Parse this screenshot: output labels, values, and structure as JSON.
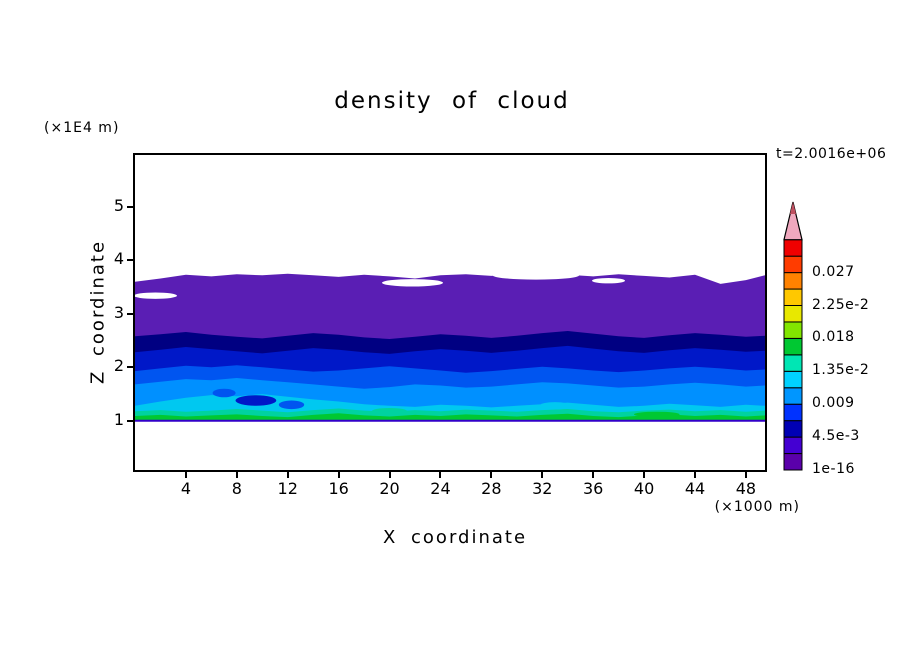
{
  "chart_data": {
    "type": "contour",
    "title": "density of cloud",
    "xlabel": "X coordinate",
    "ylabel": "Z coordinate",
    "x_unit_label": "(×1000 m)",
    "z_unit_label": "(×1E4 m)",
    "time_label": "t=2.0016e+06",
    "xlim": [
      0,
      49.5
    ],
    "zlim": [
      0.08,
      5.97
    ],
    "xticks": [
      4,
      8,
      12,
      16,
      20,
      24,
      28,
      32,
      36,
      40,
      44,
      48
    ],
    "zticks": [
      1,
      2,
      3,
      4,
      5
    ],
    "grid": false,
    "legend_position": "right-colorbar",
    "colorbar": {
      "labels_bottom_to_top": [
        "1e-16",
        "4.5e-3",
        "0.009",
        "1.35e-2",
        "0.018",
        "2.25e-2",
        "0.027"
      ],
      "boundary_values": [
        1e-16,
        0.00225,
        0.0045,
        0.00675,
        0.009,
        0.01125,
        0.0135,
        0.01575,
        0.018,
        0.02025,
        0.0225,
        0.02475,
        0.027,
        0.02925,
        0.0315
      ],
      "cell_colors_bottom_to_top": [
        "#5a00aa",
        "#4400d2",
        "#0000b4",
        "#0032ff",
        "#0096ff",
        "#00d2ff",
        "#00e6b4",
        "#00c832",
        "#82e600",
        "#e8e800",
        "#ffc800",
        "#ff8200",
        "#ff3c00",
        "#f00000"
      ],
      "overflow_arrow_color": "#f0a8be",
      "overflow_arrow_tip_color": "#c05060"
    },
    "field": {
      "description": "Stratified cloud density: highest values (green/cyan ~0.009-0.018) near cloud base z=1, decreasing upward through blue and navy to purple (1e-16 to 4.5e-3) with wavy cloud top near z=3.7",
      "x": [
        0,
        2,
        4,
        6,
        8,
        10,
        12,
        14,
        16,
        18,
        20,
        22,
        24,
        26,
        28,
        30,
        32,
        34,
        36,
        38,
        40,
        42,
        44,
        46,
        48,
        49.5
      ],
      "base_z": 1.0,
      "base_line_color": "#3200c8",
      "bands": [
        {
          "name": "purple",
          "approx_value": "1e-16 to 4.5e-3",
          "color": "#5a1eb4",
          "top": [
            3.6,
            3.66,
            3.73,
            3.7,
            3.74,
            3.72,
            3.75,
            3.72,
            3.69,
            3.73,
            3.7,
            3.66,
            3.72,
            3.74,
            3.71,
            3.74,
            3.76,
            3.73,
            3.7,
            3.74,
            3.71,
            3.68,
            3.73,
            3.56,
            3.63,
            3.72
          ]
        },
        {
          "name": "dark-navy",
          "approx_value": "4.5e-3",
          "color": "#000082",
          "top": [
            2.58,
            2.62,
            2.66,
            2.61,
            2.57,
            2.54,
            2.59,
            2.64,
            2.61,
            2.56,
            2.53,
            2.57,
            2.62,
            2.59,
            2.55,
            2.59,
            2.64,
            2.68,
            2.63,
            2.58,
            2.55,
            2.6,
            2.64,
            2.61,
            2.57,
            2.59
          ]
        },
        {
          "name": "navy",
          "approx_value": "6.75e-3",
          "color": "#0018c8",
          "top": [
            2.28,
            2.33,
            2.38,
            2.34,
            2.3,
            2.26,
            2.31,
            2.36,
            2.33,
            2.28,
            2.25,
            2.3,
            2.34,
            2.31,
            2.27,
            2.31,
            2.36,
            2.4,
            2.35,
            2.3,
            2.27,
            2.32,
            2.36,
            2.33,
            2.29,
            2.31
          ]
        },
        {
          "name": "blue",
          "approx_value": "0.009",
          "color": "#0055f0",
          "top": [
            1.93,
            1.98,
            2.03,
            2.0,
            2.04,
            2.0,
            1.96,
            1.92,
            1.94,
            1.98,
            2.02,
            1.98,
            1.94,
            1.9,
            1.93,
            1.97,
            2.01,
            1.98,
            1.94,
            1.91,
            1.94,
            1.98,
            2.01,
            1.98,
            1.94,
            1.96
          ]
        },
        {
          "name": "sky-blue",
          "approx_value": "1.125e-2",
          "color": "#0090ff",
          "top": [
            1.68,
            1.73,
            1.78,
            1.76,
            1.8,
            1.76,
            1.72,
            1.68,
            1.64,
            1.6,
            1.63,
            1.68,
            1.66,
            1.62,
            1.64,
            1.68,
            1.72,
            1.7,
            1.66,
            1.62,
            1.64,
            1.68,
            1.71,
            1.68,
            1.64,
            1.66
          ]
        },
        {
          "name": "cyan",
          "approx_value": "1.35e-2",
          "color": "#00c8f0",
          "top": [
            1.28,
            1.36,
            1.43,
            1.48,
            1.46,
            1.5,
            1.45,
            1.4,
            1.36,
            1.31,
            1.28,
            1.26,
            1.3,
            1.28,
            1.25,
            1.28,
            1.31,
            1.34,
            1.3,
            1.26,
            1.28,
            1.32,
            1.29,
            1.26,
            1.3,
            1.28
          ]
        },
        {
          "name": "turquoise",
          "approx_value": "1.575e-2",
          "color": "#00d2a0",
          "top": [
            1.18,
            1.2,
            1.17,
            1.19,
            1.22,
            1.19,
            1.16,
            1.2,
            1.23,
            1.19,
            1.17,
            1.2,
            1.18,
            1.21,
            1.19,
            1.17,
            1.2,
            1.22,
            1.18,
            1.16,
            1.19,
            1.21,
            1.18,
            1.2,
            1.17,
            1.19
          ]
        },
        {
          "name": "green",
          "approx_value": "0.018",
          "color": "#00c832",
          "top": [
            1.09,
            1.11,
            1.08,
            1.1,
            1.12,
            1.09,
            1.07,
            1.11,
            1.14,
            1.1,
            1.08,
            1.11,
            1.09,
            1.12,
            1.1,
            1.08,
            1.11,
            1.13,
            1.09,
            1.07,
            1.1,
            1.12,
            1.09,
            1.11,
            1.08,
            1.1
          ]
        }
      ],
      "blobs": [
        {
          "x": 9.5,
          "z": 1.38,
          "rx": 1.6,
          "rz": 0.1,
          "color": "#0018c8"
        },
        {
          "x": 12.3,
          "z": 1.3,
          "rx": 1.0,
          "rz": 0.08,
          "color": "#0055f0"
        },
        {
          "x": 7.0,
          "z": 1.52,
          "rx": 0.9,
          "rz": 0.08,
          "color": "#0055f0"
        },
        {
          "x": 33.0,
          "z": 1.28,
          "rx": 1.2,
          "rz": 0.07,
          "color": "#00c8f0"
        },
        {
          "x": 20.0,
          "z": 1.18,
          "rx": 1.4,
          "rz": 0.06,
          "color": "#00d2a0"
        },
        {
          "x": 41.0,
          "z": 1.12,
          "rx": 1.8,
          "rz": 0.05,
          "color": "#00c832"
        }
      ],
      "holes": [
        {
          "x": 21.8,
          "z": 3.58,
          "rx": 2.4,
          "rz": 0.07
        },
        {
          "x": 31.5,
          "z": 3.72,
          "rx": 3.4,
          "rz": 0.08
        },
        {
          "x": 37.2,
          "z": 3.62,
          "rx": 1.3,
          "rz": 0.05
        },
        {
          "x": 1.6,
          "z": 3.34,
          "rx": 1.7,
          "rz": 0.06
        }
      ]
    }
  }
}
